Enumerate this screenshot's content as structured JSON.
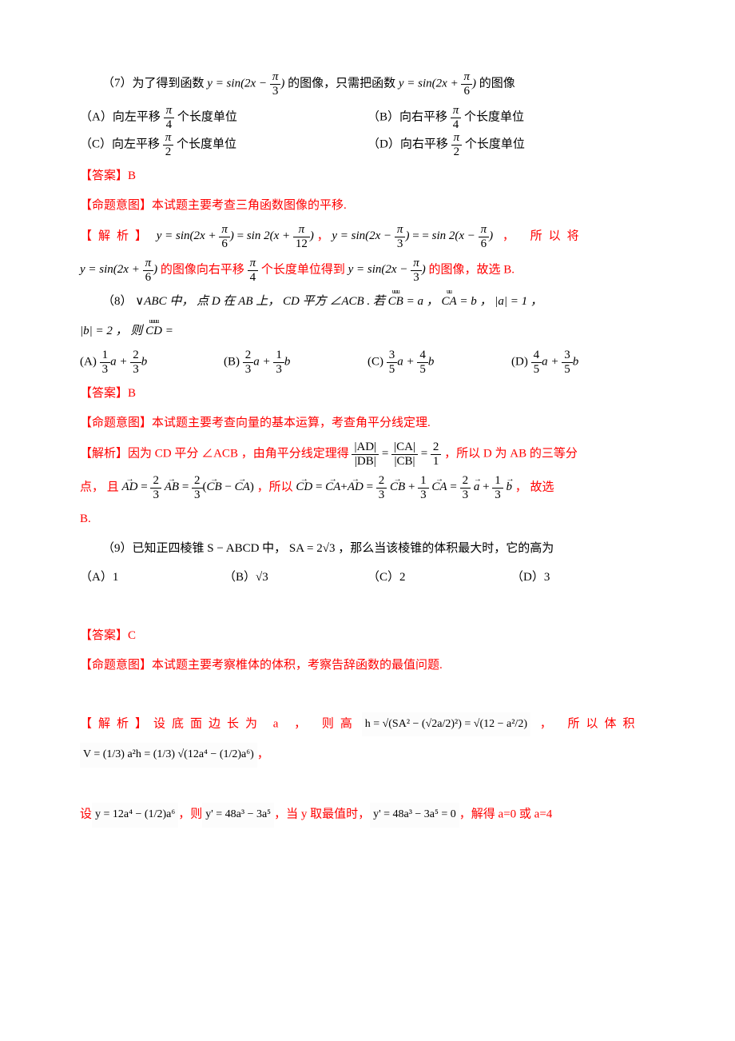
{
  "colors": {
    "answer": "#ff0000",
    "text": "#000000",
    "background": "#ffffff"
  },
  "typography": {
    "body_family": "SimSun",
    "math_family": "Times New Roman",
    "body_size_pt": 11,
    "line_height": 1.9
  },
  "q7": {
    "num": "（7）",
    "stem_a": "为了得到函数 ",
    "stem_f1_a": "y = sin(2x − ",
    "stem_f1_n": "π",
    "stem_f1_d": "3",
    "stem_f1_b": ")",
    "stem_b": " 的图像，只需把函数 ",
    "stem_f2_a": "y = sin(2x + ",
    "stem_f2_n": "π",
    "stem_f2_d": "6",
    "stem_f2_b": ")",
    "stem_c": " 的图像",
    "optA_a": "（A）向左平移 ",
    "optA_n": "π",
    "optA_d": "4",
    "optA_b": " 个长度单位",
    "optB_a": "（B）向右平移 ",
    "optB_n": "π",
    "optB_d": "4",
    "optB_b": " 个长度单位",
    "optC_a": "（C）向左平移 ",
    "optC_n": "π",
    "optC_d": "2",
    "optC_b": " 个长度单位",
    "optD_a": "（D）向右平移 ",
    "optD_n": "π",
    "optD_d": "2",
    "optD_b": " 个长度单位",
    "ans_label": "【答案】",
    "ans": "B",
    "intent_label": "【命题意图】",
    "intent": "本试题主要考查三角函数图像的平移.",
    "expl_label": "【解析】",
    "e1_a": "y = sin(2x + ",
    "e1_n": "π",
    "e1_d": "6",
    "e1_b": ")",
    "e1_eq": " = ",
    "e2_a": "sin 2(x + ",
    "e2_n": "π",
    "e2_d": "12",
    "e2_b": ")",
    "e_sep": " ，  ",
    "e3_a": "y = sin(2x − ",
    "e3_n": "π",
    "e3_d": "3",
    "e3_b": ")",
    "e3_eq": " = = ",
    "e4_a": "sin 2(x − ",
    "e4_n": "π",
    "e4_d": "6",
    "e4_b": ")",
    "e_tail1": " ， 所以将",
    "e5_a": "y = sin(2x + ",
    "e5_n": "π",
    "e5_d": "6",
    "e5_b": ")",
    "e_mid1": " 的图像向右平移 ",
    "e_mid_n": "π",
    "e_mid_d": "4",
    "e_mid2": " 个长度单位得到 ",
    "e6_a": "y = sin(2x − ",
    "e6_n": "π",
    "e6_d": "3",
    "e6_b": ")",
    "e_tail2": " 的图像，故选 B."
  },
  "q8": {
    "num": "（8）",
    "stem_a": "∨",
    "stem_b": "ABC 中， 点 D 在 AB 上， CD 平方 ∠ACB . 若 ",
    "cb_arrow": "uuu",
    "cb": "CB",
    "eq1": " = a ，  ",
    "ca_arrow": "uu",
    "ca": "CA",
    "eq2": " = b ，  ",
    "mag_a": "|a| = 1 ，",
    "line2_a": "|b| = 2 ，  则 ",
    "cd_arrow": "uuuu",
    "cd": "CD",
    "line2_b": " =",
    "optA_a": "(A)  ",
    "optA_f1n": "1",
    "optA_f1d": "3",
    "optA_mid": "a + ",
    "optA_f2n": "2",
    "optA_f2d": "3",
    "optA_b": "b",
    "optB_a": "(B)  ",
    "optB_f1n": "2",
    "optB_f1d": "3",
    "optB_mid": "a + ",
    "optB_f2n": "1",
    "optB_f2d": "3",
    "optB_b": "b",
    "optC_a": "(C)  ",
    "optC_f1n": "3",
    "optC_f1d": "5",
    "optC_mid": "a + ",
    "optC_f2n": "4",
    "optC_f2d": "5",
    "optC_b": "b",
    "optD_a": "(D)  ",
    "optD_f1n": "4",
    "optD_f1d": "5",
    "optD_mid": "a + ",
    "optD_f2n": "3",
    "optD_f2d": "5",
    "optD_b": "b",
    "ans_label": "【答案】",
    "ans": "B",
    "intent_label": "【命题意图】",
    "intent": "本试题主要考查向量的基本运算，考查角平分线定理.",
    "expl_label": "【解析】",
    "e1": "因为 CD 平分 ∠ACB ，由角平分线定理得 ",
    "rat_n1": "|AD|",
    "rat_d1": "|DB|",
    "rat_eq1": " = ",
    "rat_n2": "|CA|",
    "rat_d2": "|CB|",
    "rat_eq2": " = ",
    "rat_n3": "2",
    "rat_d3": "1",
    "e2": " ，所以 D 为 AB 的三等分",
    "e_line2_a": "点， 且 ",
    "ad_vec": "AD",
    "eqv": " = ",
    "f23n": "2",
    "f23d": "3",
    "ab_vec": "AB",
    "eqv2": " = ",
    "paren_a": "(",
    "cb_vec": "CB",
    "minus": " − ",
    "ca_vec": "CA",
    "paren_b": ")",
    "e_line2_b": " ，所以 ",
    "cd_vec": "CD",
    "eqv3": " = ",
    "plus": "+",
    "f13n": "1",
    "f13d": "3",
    "a_vec": "a",
    "b_vec": "b",
    "e_tail": " ， 故选",
    "e_tail2": "B."
  },
  "q9": {
    "num": "（9）",
    "stem_a": "已知正四棱锥 S − ABCD 中， SA = 2",
    "sqrt3": "√3",
    "stem_b": " ，那么当该棱锥的体积最大时，它的高为",
    "optA": "（A）1",
    "optB_a": "（B）",
    "optB_v": "√3",
    "optC": "（C）2",
    "optD": "（D）3",
    "ans_label": "【答案】",
    "ans": "C",
    "intent_label": "【命题意图】",
    "intent": "本试题主要考察椎体的体积，考察告辞函数的最值问题.",
    "expl_label": "【解析】",
    "e1": "设底面边长为 a ， 则高",
    "h_formula": "h = √(SA² − (√2a/2)²) = √(12 − a²/2)",
    "e2": " ， 所以体积",
    "v_formula": "V = (1/3) a²h = (1/3) √(12a⁴ − (1/2)a⁶)",
    "e3": "设",
    "y_formula": "y = 12a⁴ − (1/2)a⁶",
    "e4": "，则",
    "yp_formula": "y' = 48a³ − 3a⁵",
    "e5": "，当 y 取最值时，",
    "yp0_formula": "y' = 48a³ − 3a⁵ = 0",
    "e6": "，解得 a=0 或 a=4"
  }
}
